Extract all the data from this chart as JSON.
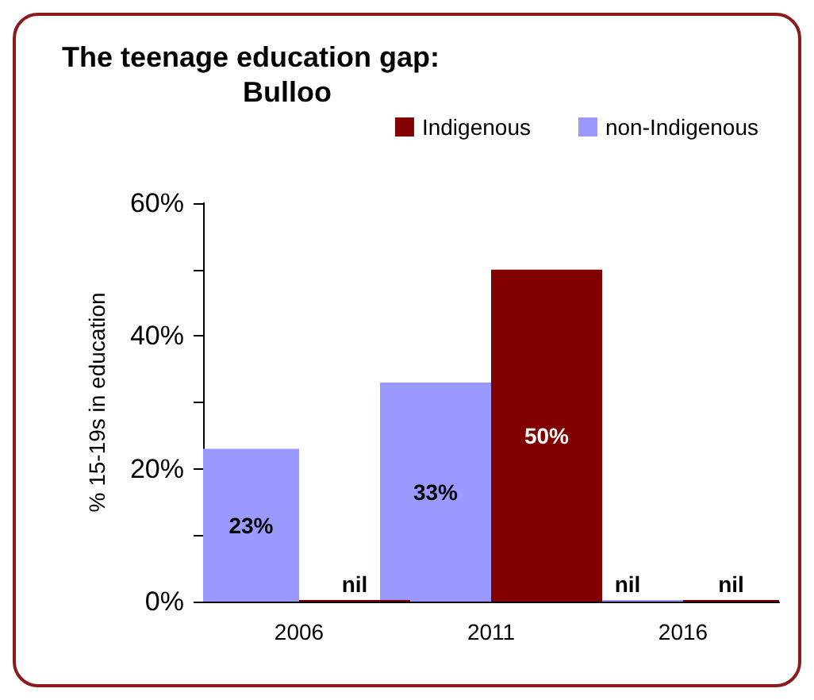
{
  "chart_data": {
    "type": "bar",
    "title": "The teenage education gap:",
    "subtitle": "Bulloo",
    "ylabel": "% 15-19s in education",
    "categories": [
      "2006",
      "2011",
      "2016"
    ],
    "series": [
      {
        "name": "non-Indigenous",
        "color": "#9999ff",
        "values": [
          23,
          33,
          0
        ],
        "value_labels": [
          "23%",
          "33%",
          "nil"
        ]
      },
      {
        "name": "Indigenous",
        "color": "#800000",
        "values": [
          0,
          50,
          0
        ],
        "value_labels": [
          "nil",
          "50%",
          "nil"
        ]
      }
    ],
    "ylim": [
      0,
      60
    ],
    "yticks": [
      {
        "value": 0,
        "label": "0%"
      },
      {
        "value": 10,
        "label": null
      },
      {
        "value": 20,
        "label": "20%"
      },
      {
        "value": 30,
        "label": null
      },
      {
        "value": 40,
        "label": "40%"
      },
      {
        "value": 50,
        "label": null
      },
      {
        "value": 60,
        "label": "60%"
      }
    ],
    "grid": false,
    "legend": "top right"
  }
}
